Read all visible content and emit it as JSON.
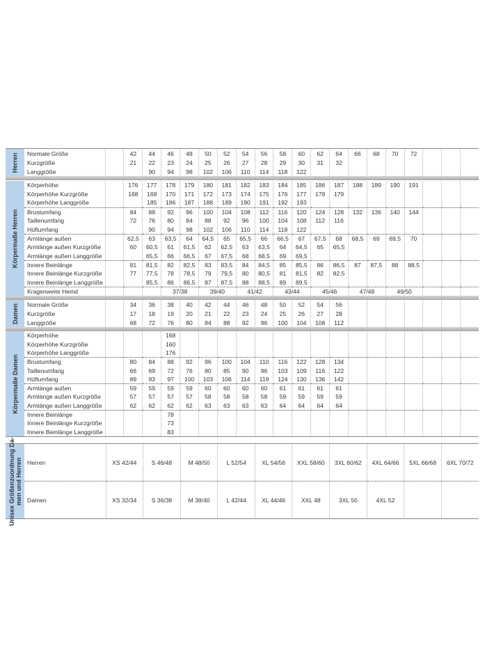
{
  "colors": {
    "side_label_bg": "#b9d3ec",
    "separator_bar": "#a9a9a9"
  },
  "sections": [
    {
      "side_label": "Herren",
      "groups": [
        [
          {
            "label": "Normale Größe",
            "values": [
              "42",
              "44",
              "46",
              "48",
              "50",
              "52",
              "54",
              "56",
              "58",
              "60",
              "62",
              "64",
              "66",
              "68",
              "70",
              "72"
            ]
          },
          {
            "label": "Kurzgröße",
            "values": [
              "21",
              "22",
              "23",
              "24",
              "25",
              "26",
              "27",
              "28",
              "29",
              "30",
              "31",
              "32"
            ]
          },
          {
            "label": "Langgröße",
            "values": [
              "",
              "90",
              "94",
              "98",
              "102",
              "106",
              "110",
              "114",
              "118",
              "122"
            ]
          }
        ]
      ]
    },
    {
      "side_label": "Körpermaße Herren",
      "groups": [
        [
          {
            "label": "Körperhöhe",
            "values": [
              "176",
              "177",
              "178",
              "179",
              "180",
              "181",
              "182",
              "183",
              "184",
              "185",
              "186",
              "187",
              "188",
              "189",
              "190",
              "191"
            ]
          },
          {
            "label": "Körperhöhe Kurzgröße",
            "values": [
              "168",
              "169",
              "170",
              "171",
              "172",
              "173",
              "174",
              "175",
              "176",
              "177",
              "178",
              "179"
            ]
          },
          {
            "label": "Körperhöhe Langgröße",
            "values": [
              "",
              "185",
              "186",
              "187",
              "188",
              "189",
              "190",
              "191",
              "192",
              "193"
            ]
          }
        ],
        [
          {
            "label": "Brustumfang",
            "values": [
              "84",
              "88",
              "92",
              "96",
              "100",
              "104",
              "108",
              "112",
              "116",
              "120",
              "124",
              "128",
              "132",
              "136",
              "140",
              "144"
            ]
          },
          {
            "label": "Taillenumfang",
            "values": [
              "72",
              "76",
              "80",
              "84",
              "88",
              "92",
              "96",
              "100",
              "104",
              "108",
              "112",
              "116"
            ]
          },
          {
            "label": "Hüftumfang",
            "values": [
              "",
              "90",
              "94",
              "98",
              "102",
              "106",
              "110",
              "114",
              "118",
              "122"
            ]
          }
        ],
        [
          {
            "label": "Armlänge außen",
            "values": [
              "62,5",
              "63",
              "63,5",
              "64",
              "64,5",
              "65",
              "65,5",
              "66",
              "66,5",
              "67",
              "67,5",
              "68",
              "68,5",
              "69",
              "69,5",
              "70"
            ]
          },
          {
            "label": "Armlänge außen Kurzgröße",
            "values": [
              "60",
              "60,5",
              "61",
              "61,5",
              "62",
              "62,5",
              "63",
              "63,5",
              "64",
              "64,5",
              "65",
              "65,5"
            ]
          },
          {
            "label": "Armlänge außen Langgröße",
            "values": [
              "",
              "65,5",
              "66",
              "66,5",
              "67",
              "67,5",
              "68",
              "68,5",
              "69",
              "69,5"
            ]
          }
        ],
        [
          {
            "label": "Innere Beinlänge",
            "values": [
              "81",
              "81,5",
              "82",
              "82,5",
              "83",
              "83,5",
              "84",
              "84,5",
              "85",
              "85,5",
              "86",
              "86,5",
              "87",
              "87,5",
              "88",
              "88,5"
            ]
          },
          {
            "label": "Innere Beinlänge Kurzgröße",
            "values": [
              "77",
              "77,5",
              "78",
              "78,5",
              "79",
              "79,5",
              "80",
              "80,5",
              "81",
              "81,5",
              "82",
              "82,5"
            ]
          },
          {
            "label": "Innere Beinlänge Langgröße",
            "values": [
              "",
              "85,5",
              "86",
              "86,5",
              "87",
              "87,5",
              "88",
              "88,5",
              "89",
              "89,5"
            ]
          }
        ],
        [
          {
            "label": "Kragenweite Hemd",
            "pairs": [
              "",
              "",
              "37/38",
              "39/40",
              "41/42",
              "43/44",
              "45/46",
              "47/48",
              "49/50"
            ]
          }
        ]
      ]
    },
    {
      "side_label": "Damen",
      "groups": [
        [
          {
            "label": "Normale Größe",
            "values": [
              "34",
              "36",
              "38",
              "40",
              "42",
              "44",
              "46",
              "48",
              "50",
              "52",
              "54",
              "56"
            ]
          },
          {
            "label": "Kurzgröße",
            "values": [
              "17",
              "18",
              "19",
              "20",
              "21",
              "22",
              "23",
              "24",
              "25",
              "26",
              "27",
              "28"
            ]
          },
          {
            "label": "Langgröße",
            "values": [
              "68",
              "72",
              "76",
              "80",
              "84",
              "88",
              "92",
              "96",
              "100",
              "104",
              "108",
              "112"
            ]
          }
        ]
      ]
    },
    {
      "side_label": "Körpermaße Damen",
      "groups": [
        [
          {
            "label": "Körperhöhe",
            "values": [
              "",
              "",
              "168"
            ]
          },
          {
            "label": "Körperhöhe Kurzgröße",
            "values": [
              "",
              "",
              "160"
            ]
          },
          {
            "label": "Körperhöhe Langgröße",
            "values": [
              "",
              "",
              "176"
            ]
          }
        ],
        [
          {
            "label": "Brustumfang",
            "values": [
              "80",
              "84",
              "88",
              "92",
              "96",
              "100",
              "104",
              "110",
              "116",
              "122",
              "128",
              "134"
            ]
          },
          {
            "label": "Taillenumfang",
            "values": [
              "66",
              "69",
              "72",
              "76",
              "80",
              "85",
              "90",
              "96",
              "103",
              "109",
              "116",
              "122"
            ]
          },
          {
            "label": "Hüftumfang",
            "values": [
              "89",
              "93",
              "97",
              "100",
              "103",
              "106",
              "114",
              "119",
              "124",
              "130",
              "136",
              "142"
            ]
          }
        ],
        [
          {
            "label": "Armlänge außen",
            "values": [
              "59",
              "59",
              "59",
              "59",
              "60",
              "60",
              "60",
              "60",
              "61",
              "61",
              "61",
              "61"
            ]
          },
          {
            "label": "Armlänge außen Kurzgröße",
            "values": [
              "57",
              "57",
              "57",
              "57",
              "58",
              "58",
              "58",
              "58",
              "59",
              "59",
              "59",
              "59"
            ]
          },
          {
            "label": "Armlänge außen Langgröße",
            "values": [
              "62",
              "62",
              "62",
              "62",
              "63",
              "63",
              "63",
              "63",
              "64",
              "64",
              "64",
              "64"
            ]
          }
        ],
        [
          {
            "label": "Innere Beinlänge",
            "values": [
              "",
              "",
              "78"
            ]
          },
          {
            "label": "Innere Beinlänge Kurzgröße",
            "values": [
              "",
              "",
              "73"
            ]
          },
          {
            "label": "Innere Beinlänge Langgröße",
            "values": [
              "",
              "",
              "83"
            ]
          }
        ]
      ]
    }
  ],
  "unisex": {
    "side_label": "Unisex Größenzuordnung Da-\nmen und Herren",
    "rows": [
      {
        "label": "Herren",
        "values": [
          "XS 42/44",
          "S 46/48",
          "M 48/50",
          "L 52/54",
          "XL 54/56",
          "XXL 58/60",
          "3XL 60/62",
          "4XL 64/66",
          "5XL 66/68",
          "6XL 70/72"
        ]
      },
      {
        "label": "Damen",
        "values": [
          "XS 32/34",
          "S 36/38",
          "M 38/40",
          "L 42/44",
          "XL 44/46",
          "XXL 48",
          "3XL 50",
          "4XL 52",
          "",
          ""
        ]
      }
    ]
  }
}
